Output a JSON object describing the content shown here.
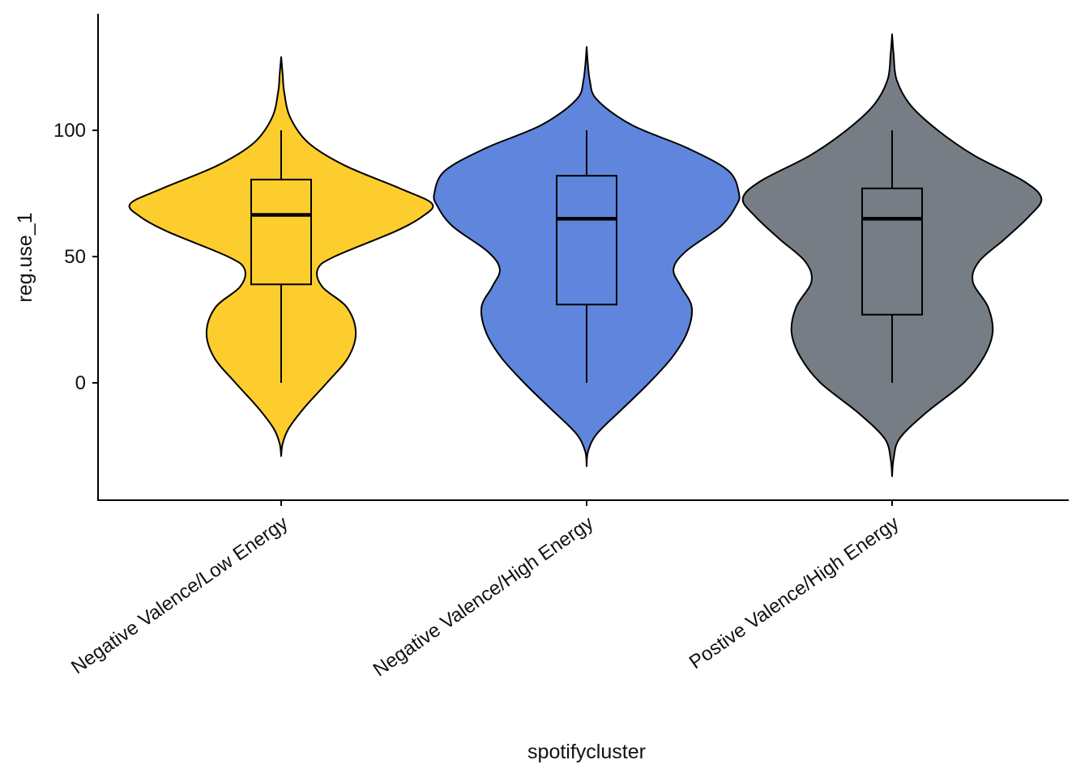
{
  "chart_data": {
    "type": "violin",
    "xlabel": "spotifycluster",
    "ylabel": "reg.use_1",
    "ylim": [
      -46,
      146
    ],
    "yticks": [
      0,
      50,
      100
    ],
    "grid": false,
    "legend": "none",
    "categories": [
      "Negative Valence/Low Energy",
      "Negative Valence/High Energy",
      "Postive Valence/High Energy"
    ],
    "colors": [
      "#FDCD2E",
      "#5F86DC",
      "#777D84"
    ],
    "boxplots": [
      {
        "min": 0,
        "q1": 39,
        "median": 66.5,
        "q3": 80.5,
        "max": 100
      },
      {
        "min": 0,
        "q1": 31,
        "median": 65,
        "q3": 82,
        "max": 100
      },
      {
        "min": 0,
        "q1": 27,
        "median": 65,
        "q3": 77,
        "max": 100
      }
    ],
    "violins": [
      {
        "ymin": -29,
        "ymax": 129,
        "profile": [
          [
            -29,
            0
          ],
          [
            -24,
            0.01
          ],
          [
            -18,
            0.05
          ],
          [
            -10,
            0.15
          ],
          [
            0,
            0.3
          ],
          [
            10,
            0.44
          ],
          [
            20,
            0.49
          ],
          [
            30,
            0.43
          ],
          [
            38,
            0.27
          ],
          [
            45,
            0.24
          ],
          [
            50,
            0.35
          ],
          [
            60,
            0.75
          ],
          [
            66,
            0.93
          ],
          [
            71,
            0.99
          ],
          [
            77,
            0.78
          ],
          [
            86,
            0.42
          ],
          [
            95,
            0.18
          ],
          [
            105,
            0.06
          ],
          [
            115,
            0.02
          ],
          [
            122,
            0.01
          ],
          [
            129,
            0
          ]
        ]
      },
      {
        "ymin": -33,
        "ymax": 133,
        "profile": [
          [
            -33,
            0
          ],
          [
            -27,
            0.01
          ],
          [
            -20,
            0.07
          ],
          [
            -10,
            0.24
          ],
          [
            0,
            0.41
          ],
          [
            10,
            0.56
          ],
          [
            20,
            0.66
          ],
          [
            30,
            0.69
          ],
          [
            38,
            0.62
          ],
          [
            45,
            0.57
          ],
          [
            52,
            0.65
          ],
          [
            62,
            0.88
          ],
          [
            70,
            0.98
          ],
          [
            75,
            1.0
          ],
          [
            84,
            0.93
          ],
          [
            93,
            0.66
          ],
          [
            102,
            0.3
          ],
          [
            112,
            0.07
          ],
          [
            120,
            0.02
          ],
          [
            133,
            0
          ]
        ]
      },
      {
        "ymin": -37,
        "ymax": 138,
        "profile": [
          [
            -37,
            0
          ],
          [
            -30,
            0.01
          ],
          [
            -22,
            0.05
          ],
          [
            -12,
            0.22
          ],
          [
            0,
            0.47
          ],
          [
            10,
            0.6
          ],
          [
            20,
            0.66
          ],
          [
            30,
            0.63
          ],
          [
            40,
            0.53
          ],
          [
            48,
            0.57
          ],
          [
            57,
            0.74
          ],
          [
            66,
            0.9
          ],
          [
            73,
            0.98
          ],
          [
            80,
            0.86
          ],
          [
            90,
            0.54
          ],
          [
            100,
            0.3
          ],
          [
            110,
            0.12
          ],
          [
            120,
            0.03
          ],
          [
            130,
            0.01
          ],
          [
            138,
            0
          ]
        ]
      }
    ]
  }
}
